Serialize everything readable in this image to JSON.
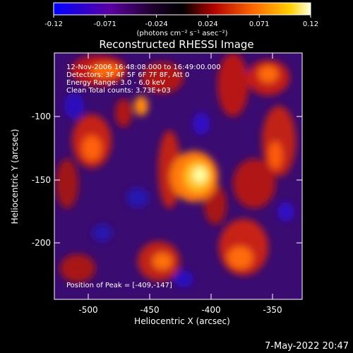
{
  "colorbar": {
    "tick_labels": [
      "-0.12",
      "-0.071",
      "-0.024",
      "0.024",
      "0.071",
      "0.12"
    ],
    "units": "(photons cm⁻² s⁻¹ asec⁻²)",
    "colors": [
      "#0000ff",
      "#5a00a0",
      "#000000",
      "#b00000",
      "#ff7a00",
      "#ffffe0"
    ]
  },
  "title": "Reconstructed RHESSI Image",
  "annotations": {
    "line1": "12-Nov-2006 16:48:08.000 to 16:49:00.000",
    "line2": "Detectors: 3F 4F 5F 6F 7F 8F, Att 0",
    "line3": "Energy Range: 3.0 - 6.0 keV",
    "line4": "Clean     Total counts: 3.73E+03",
    "peak": "Position of Peak = [-409,-147]"
  },
  "axes": {
    "xlabel": "Heliocentric X (arcsec)",
    "ylabel": "Heliocentric Y (arcsec)",
    "xticks": [
      "-500",
      "-450",
      "-400",
      "-350"
    ],
    "yticks": [
      "-100",
      "-150",
      "-200"
    ]
  },
  "footer_date": "7-May-2022 20:47"
}
